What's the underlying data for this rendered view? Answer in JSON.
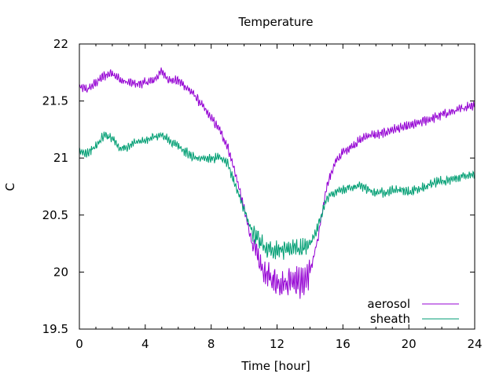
{
  "chart_data": {
    "type": "line",
    "title": "Temperature",
    "xlabel": "Time [hour]",
    "ylabel": "C",
    "xlim": [
      0,
      24
    ],
    "ylim": [
      19.5,
      22
    ],
    "x_ticks": [
      0,
      4,
      8,
      12,
      16,
      20,
      24
    ],
    "y_ticks": [
      19.5,
      20,
      20.5,
      21,
      21.5,
      22
    ],
    "x_tick_labels": [
      "0",
      "4",
      "8",
      "12",
      "16",
      "20",
      "24"
    ],
    "y_tick_labels": [
      "19.5",
      "20",
      "20.5",
      "21",
      "21.5",
      "22"
    ],
    "grid": false,
    "legend_position": "bottom-right",
    "series": [
      {
        "name": "aerosol",
        "color": "#9400d3",
        "x": [
          0,
          0.5,
          1,
          1.5,
          2,
          2.5,
          3,
          3.5,
          4,
          4.5,
          5,
          5.5,
          6,
          6.5,
          7,
          7.5,
          8,
          8.5,
          9,
          9.5,
          10,
          10.5,
          11,
          11.5,
          12,
          12.5,
          13,
          13.5,
          14,
          14.5,
          15,
          15.5,
          16,
          16.5,
          17,
          17.5,
          18,
          18.5,
          19,
          19.5,
          20,
          20.5,
          21,
          21.5,
          22,
          22.5,
          23,
          23.5,
          24
        ],
        "y": [
          21.62,
          21.6,
          21.66,
          21.72,
          21.75,
          21.68,
          21.66,
          21.65,
          21.66,
          21.68,
          21.76,
          21.68,
          21.68,
          21.62,
          21.55,
          21.45,
          21.35,
          21.25,
          21.1,
          20.85,
          20.55,
          20.25,
          20.05,
          19.95,
          19.92,
          19.9,
          19.95,
          19.9,
          20.0,
          20.3,
          20.75,
          20.95,
          21.05,
          21.1,
          21.15,
          21.2,
          21.2,
          21.22,
          21.25,
          21.26,
          21.28,
          21.3,
          21.33,
          21.35,
          21.38,
          21.4,
          21.42,
          21.45,
          21.47
        ]
      },
      {
        "name": "sheath",
        "color": "#009e73",
        "x": [
          0,
          0.5,
          1,
          1.5,
          2,
          2.5,
          3,
          3.5,
          4,
          4.5,
          5,
          5.5,
          6,
          6.5,
          7,
          7.5,
          8,
          8.5,
          9,
          9.5,
          10,
          10.5,
          11,
          11.5,
          12,
          12.5,
          13,
          13.5,
          14,
          14.5,
          15,
          15.5,
          16,
          16.5,
          17,
          17.5,
          18,
          18.5,
          19,
          19.5,
          20,
          20.5,
          21,
          21.5,
          22,
          22.5,
          23,
          23.5,
          24
        ],
        "y": [
          21.05,
          21.05,
          21.1,
          21.2,
          21.18,
          21.08,
          21.1,
          21.15,
          21.15,
          21.18,
          21.2,
          21.15,
          21.1,
          21.05,
          21.0,
          21.0,
          21.0,
          21.0,
          20.95,
          20.75,
          20.55,
          20.35,
          20.25,
          20.2,
          20.2,
          20.2,
          20.22,
          20.2,
          20.25,
          20.4,
          20.65,
          20.7,
          20.72,
          20.74,
          20.75,
          20.73,
          20.7,
          20.7,
          20.72,
          20.72,
          20.7,
          20.72,
          20.75,
          20.78,
          20.8,
          20.8,
          20.83,
          20.85,
          20.86
        ]
      }
    ]
  }
}
